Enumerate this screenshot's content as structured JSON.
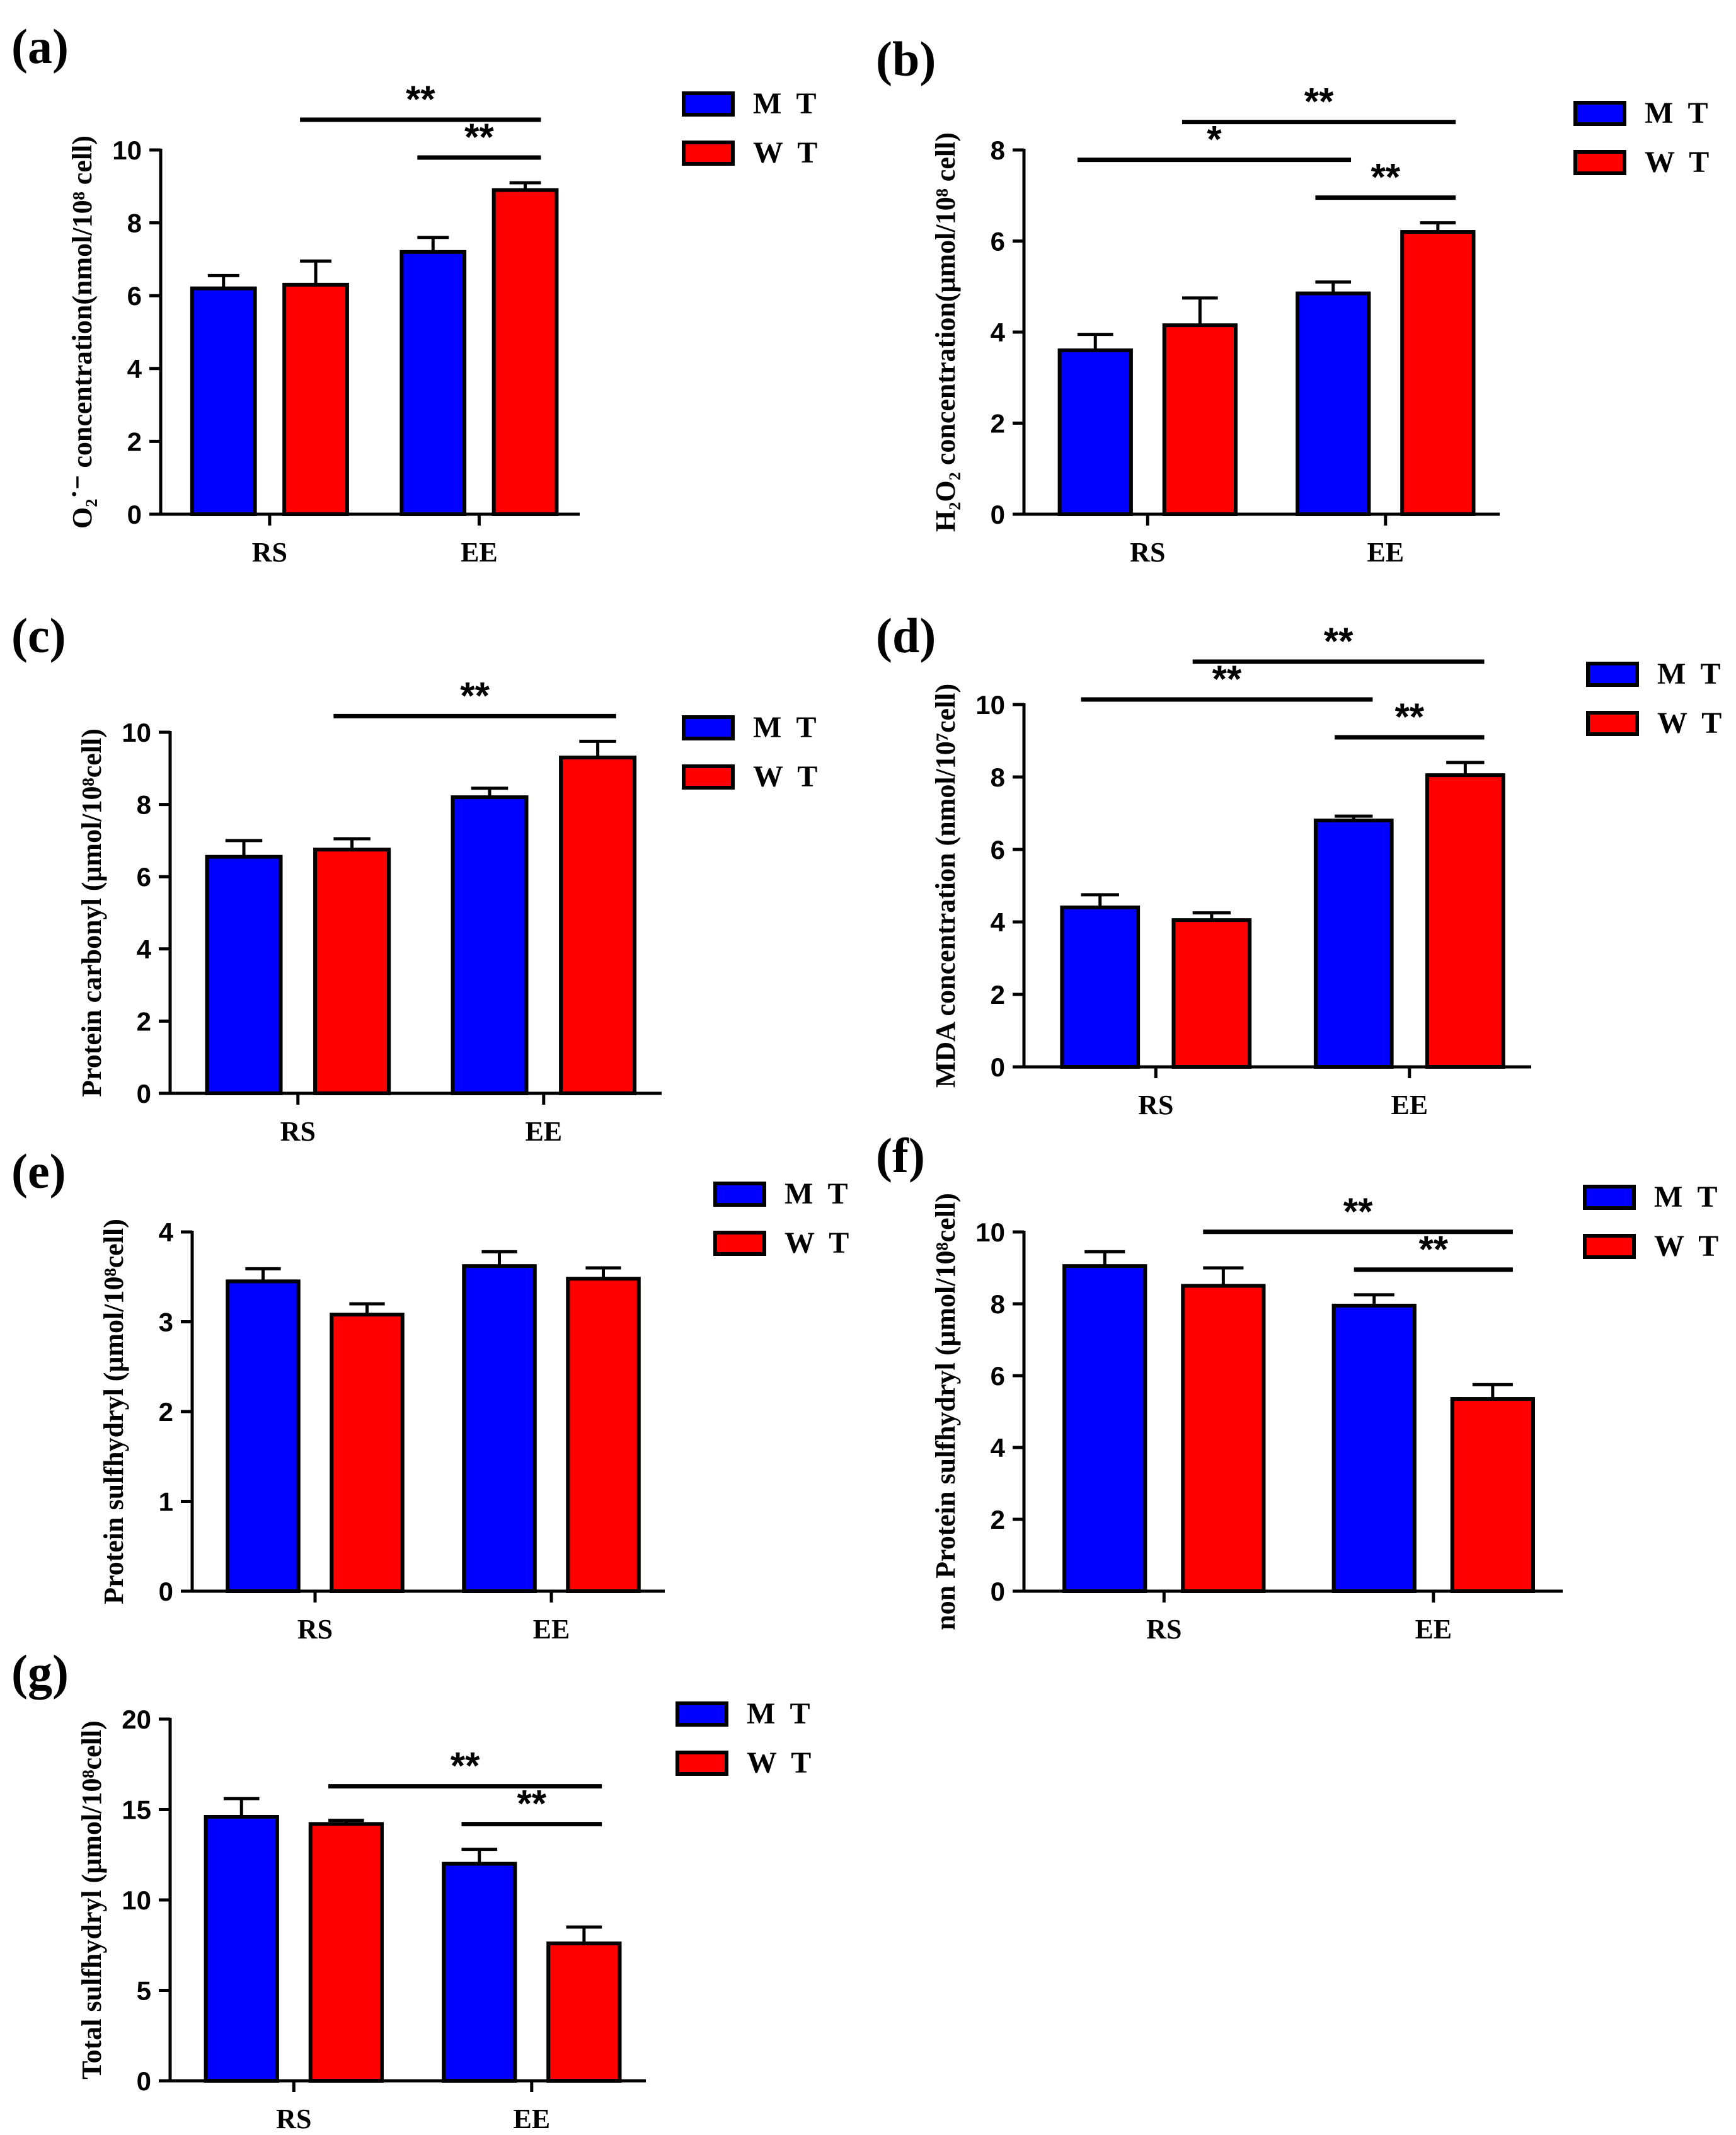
{
  "colors": {
    "MT": "#0000FF",
    "WT": "#FF0000",
    "axis": "#000000"
  },
  "chart_data": [
    {
      "panel": "(a)",
      "type": "bar",
      "categories": [
        "RS",
        "EE"
      ],
      "series": [
        {
          "name": "M T",
          "values": [
            6.2,
            7.2
          ],
          "errors": [
            0.35,
            0.4
          ]
        },
        {
          "name": "W T",
          "values": [
            6.3,
            8.9
          ],
          "errors": [
            0.65,
            0.2
          ]
        }
      ],
      "ylabel": "O₂˙⁻ concentration(nmol/10⁸ cell)",
      "yticks": [
        "0",
        "2",
        "4",
        "6",
        "8",
        "10"
      ],
      "ylim": [
        0,
        10
      ],
      "significance": [
        {
          "from": "RS-WT",
          "to": "EE-WT",
          "label": "**"
        },
        {
          "from": "EE-MT",
          "to": "EE-WT",
          "label": "**"
        }
      ]
    },
    {
      "panel": "(b)",
      "type": "bar",
      "categories": [
        "RS",
        "EE"
      ],
      "series": [
        {
          "name": "M T",
          "values": [
            3.6,
            4.85
          ],
          "errors": [
            0.35,
            0.25
          ]
        },
        {
          "name": "W T",
          "values": [
            4.15,
            6.2
          ],
          "errors": [
            0.6,
            0.2
          ]
        }
      ],
      "ylabel": "H₂O₂ concentration(μmol/10⁸ cell)",
      "yticks": [
        "0",
        "2",
        "4",
        "6",
        "8"
      ],
      "ylim": [
        0,
        8
      ],
      "significance": [
        {
          "from": "RS-MT",
          "to": "EE-MT",
          "label": "*"
        },
        {
          "from": "RS-WT",
          "to": "EE-WT",
          "label": "**"
        },
        {
          "from": "EE-MT",
          "to": "EE-WT",
          "label": "**"
        }
      ]
    },
    {
      "panel": "(c)",
      "type": "bar",
      "categories": [
        "RS",
        "EE"
      ],
      "series": [
        {
          "name": "M T",
          "values": [
            6.55,
            8.2
          ],
          "errors": [
            0.45,
            0.25
          ]
        },
        {
          "name": "W T",
          "values": [
            6.75,
            9.3
          ],
          "errors": [
            0.3,
            0.45
          ]
        }
      ],
      "ylabel": "Protein carbonyl (μmol/10⁸cell)",
      "yticks": [
        "0",
        "2",
        "4",
        "6",
        "8",
        "10"
      ],
      "ylim": [
        0,
        10
      ],
      "significance": [
        {
          "from": "RS-WT",
          "to": "EE-WT",
          "label": "**"
        }
      ]
    },
    {
      "panel": "(d)",
      "type": "bar",
      "categories": [
        "RS",
        "EE"
      ],
      "series": [
        {
          "name": "M T",
          "values": [
            4.4,
            6.8
          ],
          "errors": [
            0.35,
            0.12
          ]
        },
        {
          "name": "W T",
          "values": [
            4.05,
            8.05
          ],
          "errors": [
            0.2,
            0.35
          ]
        }
      ],
      "ylabel": "MDA concentration (nmol/10⁷cell)",
      "yticks": [
        "0",
        "2",
        "4",
        "6",
        "8",
        "10"
      ],
      "ylim": [
        0,
        10
      ],
      "significance": [
        {
          "from": "RS-MT",
          "to": "EE-MT",
          "label": "**"
        },
        {
          "from": "RS-WT",
          "to": "EE-WT",
          "label": "**"
        },
        {
          "from": "EE-MT",
          "to": "EE-WT",
          "label": "**"
        }
      ]
    },
    {
      "panel": "(e)",
      "type": "bar",
      "categories": [
        "RS",
        "EE"
      ],
      "series": [
        {
          "name": "M T",
          "values": [
            3.45,
            3.62
          ],
          "errors": [
            0.14,
            0.16
          ]
        },
        {
          "name": "W T",
          "values": [
            3.08,
            3.48
          ],
          "errors": [
            0.12,
            0.12
          ]
        }
      ],
      "ylabel": "Protein sulfhydryl (μmol/10⁸cell)",
      "yticks": [
        "0",
        "1",
        "2",
        "3",
        "4"
      ],
      "ylim": [
        0,
        4
      ],
      "significance": []
    },
    {
      "panel": "(f)",
      "type": "bar",
      "categories": [
        "RS",
        "EE"
      ],
      "series": [
        {
          "name": "M T",
          "values": [
            9.05,
            7.95
          ],
          "errors": [
            0.4,
            0.3
          ]
        },
        {
          "name": "W T",
          "values": [
            8.5,
            5.35
          ],
          "errors": [
            0.5,
            0.4
          ]
        }
      ],
      "ylabel": "non Protein sulfhydryl (μmol/10⁸cell)",
      "yticks": [
        "0",
        "2",
        "4",
        "6",
        "8",
        "10"
      ],
      "ylim": [
        0,
        10
      ],
      "significance": [
        {
          "from": "RS-WT",
          "to": "EE-WT",
          "label": "**"
        },
        {
          "from": "EE-MT",
          "to": "EE-WT",
          "label": "**"
        }
      ]
    },
    {
      "panel": "(g)",
      "type": "bar",
      "categories": [
        "RS",
        "EE"
      ],
      "series": [
        {
          "name": "M T",
          "values": [
            14.6,
            12.0
          ],
          "errors": [
            1.0,
            0.8
          ]
        },
        {
          "name": "W T",
          "values": [
            14.2,
            7.6
          ],
          "errors": [
            0.2,
            0.9
          ]
        }
      ],
      "ylabel": "Total sulfhydryl (μmol/10⁸cell)",
      "yticks": [
        "0",
        "5",
        "10",
        "15",
        "20"
      ],
      "ylim": [
        0,
        20
      ],
      "significance": [
        {
          "from": "RS-WT",
          "to": "EE-WT",
          "label": "**"
        },
        {
          "from": "EE-MT",
          "to": "EE-WT",
          "label": "**"
        }
      ]
    }
  ]
}
